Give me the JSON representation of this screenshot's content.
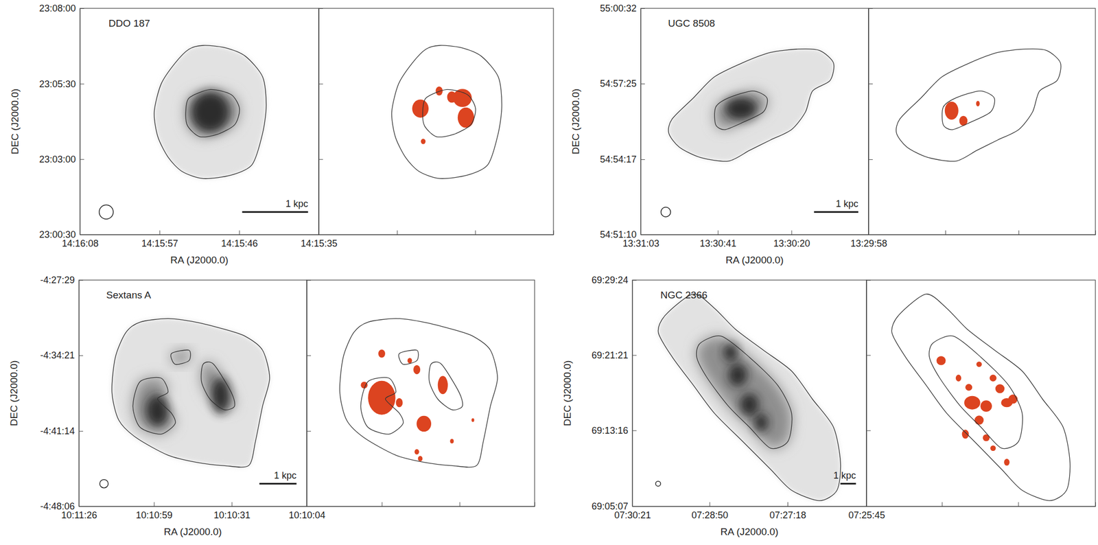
{
  "chart_data": [
    {
      "type": "image",
      "title": "DDO 187",
      "xlabel": "RA (J2000.0)",
      "ylabel": "DEC (J2000.0)",
      "color": "#dc4420",
      "xlim": [
        51368,
        51335
      ],
      "ylim": [
        82830,
        83280
      ],
      "xticks": [
        {
          "value": 51368,
          "label": "14:16:08"
        },
        {
          "value": 51357,
          "label": "14:15:57"
        },
        {
          "value": 51346,
          "label": "14:15:46"
        },
        {
          "value": 51335,
          "label": "14:15:35"
        }
      ],
      "yticks": [
        {
          "value": 82830,
          "label": "23:00:30"
        },
        {
          "value": 82980,
          "label": "23:03:00"
        },
        {
          "value": 83130,
          "label": "23:05:30"
        },
        {
          "value": 83280,
          "label": "23:08:00"
        }
      ],
      "beam": 28,
      "scalebar": {
        "label": "1 kpc",
        "length": 131
      }
    },
    {
      "type": "image",
      "title": "UGC 8508",
      "xlabel": "RA (J2000.0)",
      "ylabel": "DEC (J2000.0)",
      "color": "#dc4420",
      "xlim": [
        48663,
        48598
      ],
      "ylim": [
        197470,
        198032
      ],
      "xticks": [
        {
          "value": 48663,
          "label": "13:31:03"
        },
        {
          "value": 48641,
          "label": "13:30:41"
        },
        {
          "value": 48620,
          "label": "13:30:20"
        },
        {
          "value": 48598,
          "label": "13:29:58"
        }
      ],
      "yticks": [
        {
          "value": 197470,
          "label": "54:51:10"
        },
        {
          "value": 197657,
          "label": "54:54:17"
        },
        {
          "value": 197845,
          "label": "54:57:25"
        },
        {
          "value": 198032,
          "label": "55:00:32"
        }
      ],
      "beam": 24,
      "scalebar": {
        "label": "1 kpc",
        "length": 110
      }
    },
    {
      "type": "image",
      "title": "Sextans A",
      "xlabel": "RA (J2000.0)",
      "ylabel": "DEC (J2000.0)",
      "color": "#dc4420",
      "xlim": [
        36686,
        36604
      ],
      "ylim": [
        -17286,
        -16049
      ],
      "xticks": [
        {
          "value": 36686,
          "label": "10:11:26"
        },
        {
          "value": 36659,
          "label": "10:10:59"
        },
        {
          "value": 36631,
          "label": "10:10:31"
        },
        {
          "value": 36604,
          "label": "10:10:04"
        }
      ],
      "yticks": [
        {
          "value": -17286,
          "label": "-4:48:06"
        },
        {
          "value": -16874,
          "label": "-4:41:14"
        },
        {
          "value": -16461,
          "label": "-4:34:21"
        },
        {
          "value": -16049,
          "label": "-4:27:29"
        }
      ],
      "beam": 46,
      "scalebar": {
        "label": "1 kpc",
        "length": 203
      }
    },
    {
      "type": "image",
      "title": "NGC 2366",
      "xlabel": "RA (J2000.0)",
      "ylabel": "DEC (J2000.0)",
      "color": "#dc4420",
      "xlim": [
        27021,
        26745
      ],
      "ylim": [
        248707,
        250164
      ],
      "xticks": [
        {
          "value": 27021,
          "label": "07:30:21"
        },
        {
          "value": 26930,
          "label": "07:28:50"
        },
        {
          "value": 26838,
          "label": "07:27:18"
        },
        {
          "value": 26745,
          "label": "07:25:45"
        }
      ],
      "yticks": [
        {
          "value": 248707,
          "label": "69:05:07"
        },
        {
          "value": 249196,
          "label": "69:13:16"
        },
        {
          "value": 249681,
          "label": "69:21:21"
        },
        {
          "value": 250164,
          "label": "69:29:24"
        }
      ],
      "beam": 32,
      "scalebar": {
        "label": "1 kpc",
        "length": 100
      }
    }
  ]
}
